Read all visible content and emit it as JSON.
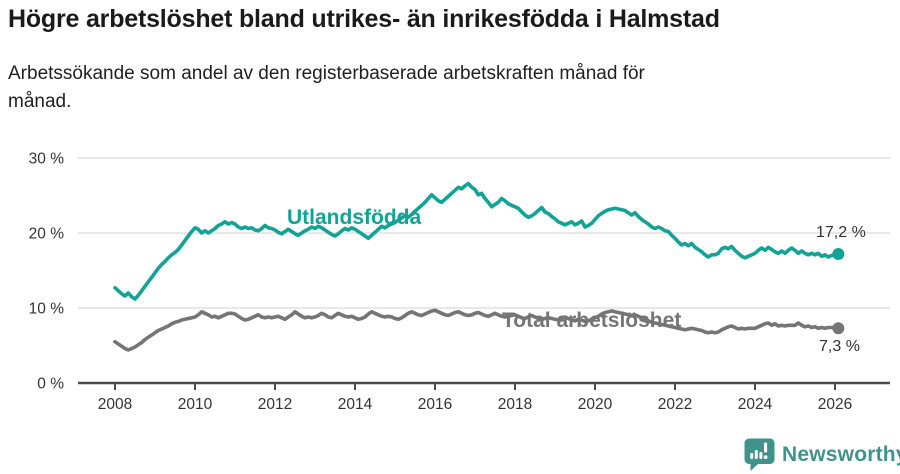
{
  "header": {
    "title": "Högre arbetslöshet bland utrikes- än inrikesfödda i Halmstad",
    "subtitle": "Arbetssökande som andel av den registerbaserade arbetskraften månad för månad."
  },
  "chart_data": {
    "type": "line",
    "title": "Högre arbetslöshet bland utrikes- än inrikesfödda i Halmstad",
    "subtitle": "Arbetssökande som andel av den registerbaserade arbetskraften månad för månad.",
    "x_start_year": 2008,
    "x_unit": "month",
    "x_tick_years": [
      2008,
      2010,
      2012,
      2014,
      2016,
      2018,
      2020,
      2022,
      2024,
      2026
    ],
    "y_ticks": [
      {
        "value": 0,
        "label": "0 %"
      },
      {
        "value": 10,
        "label": "10 %"
      },
      {
        "value": 20,
        "label": "20 %"
      },
      {
        "value": 30,
        "label": "30 %"
      }
    ],
    "ylim": [
      0,
      32
    ],
    "grid": "horizontal",
    "legend_position": "inline-labels",
    "series": [
      {
        "name": "Utlandsfödda",
        "color": "#13a396",
        "end_label": "17,2 %",
        "end_value": 17.2,
        "values": [
          12.7,
          12.3,
          11.9,
          11.6,
          12.0,
          11.5,
          11.2,
          11.7,
          12.3,
          12.9,
          13.5,
          14.1,
          14.7,
          15.3,
          15.8,
          16.2,
          16.7,
          17.1,
          17.4,
          17.8,
          18.4,
          19.0,
          19.6,
          20.2,
          20.7,
          20.5,
          20.0,
          20.3,
          20.0,
          20.3,
          20.6,
          21.0,
          21.2,
          21.5,
          21.2,
          21.4,
          21.2,
          20.8,
          20.6,
          20.8,
          20.6,
          20.7,
          20.4,
          20.3,
          20.6,
          21.0,
          20.7,
          20.6,
          20.4,
          20.1,
          19.9,
          20.2,
          20.5,
          20.2,
          19.9,
          19.7,
          20.0,
          20.3,
          20.5,
          20.8,
          20.6,
          20.9,
          20.7,
          20.4,
          20.1,
          19.8,
          19.6,
          19.9,
          20.3,
          20.6,
          20.4,
          20.7,
          20.5,
          20.2,
          19.9,
          19.6,
          19.3,
          19.7,
          20.1,
          20.5,
          20.9,
          20.7,
          21.0,
          21.2,
          21.4,
          21.7,
          22.0,
          22.3,
          22.1,
          22.5,
          22.9,
          23.3,
          23.7,
          24.1,
          24.6,
          25.1,
          24.7,
          24.3,
          24.1,
          24.5,
          24.9,
          25.3,
          25.7,
          26.1,
          25.9,
          26.3,
          26.6,
          26.1,
          25.8,
          25.1,
          25.3,
          24.6,
          24.1,
          23.5,
          23.8,
          24.1,
          24.6,
          24.3,
          23.9,
          23.7,
          23.5,
          23.3,
          22.8,
          22.4,
          22.1,
          22.3,
          22.6,
          23.0,
          23.4,
          22.8,
          22.6,
          22.2,
          21.9,
          21.5,
          21.3,
          21.1,
          21.3,
          21.5,
          21.1,
          21.3,
          21.6,
          20.8,
          21.0,
          21.3,
          21.8,
          22.3,
          22.6,
          22.9,
          23.1,
          23.2,
          23.3,
          23.2,
          23.1,
          23.0,
          22.7,
          22.4,
          22.7,
          22.2,
          21.8,
          21.5,
          21.2,
          20.8,
          20.6,
          20.8,
          20.6,
          20.3,
          20.2,
          19.7,
          19.3,
          18.8,
          18.4,
          18.6,
          18.3,
          18.6,
          18.1,
          17.8,
          17.5,
          17.1,
          16.8,
          17.1,
          17.1,
          17.3,
          17.9,
          18.1,
          17.9,
          18.2,
          17.7,
          17.3,
          16.9,
          16.7,
          16.9,
          17.1,
          17.3,
          17.7,
          18.0,
          17.7,
          18.1,
          17.8,
          17.5,
          17.3,
          17.6,
          17.3,
          17.7,
          18.0,
          17.7,
          17.3,
          17.6,
          17.3,
          17.1,
          17.3,
          17.1,
          17.3,
          16.9,
          17.1,
          16.8,
          17.0,
          17.1,
          17.2
        ]
      },
      {
        "name": "Total arbetslöshet",
        "color": "#757575",
        "end_label": "7,3 %",
        "end_value": 7.3,
        "values": [
          5.5,
          5.2,
          4.9,
          4.6,
          4.4,
          4.6,
          4.8,
          5.1,
          5.4,
          5.8,
          6.1,
          6.4,
          6.7,
          7.0,
          7.2,
          7.4,
          7.6,
          7.9,
          8.1,
          8.2,
          8.4,
          8.5,
          8.6,
          8.7,
          8.8,
          9.1,
          9.5,
          9.3,
          9.1,
          8.8,
          8.9,
          8.7,
          8.9,
          9.1,
          9.3,
          9.3,
          9.2,
          8.9,
          8.6,
          8.4,
          8.5,
          8.7,
          8.9,
          9.1,
          8.8,
          8.7,
          8.8,
          8.7,
          8.8,
          8.9,
          8.7,
          8.5,
          8.8,
          9.1,
          9.5,
          9.2,
          8.9,
          8.7,
          8.8,
          8.7,
          8.8,
          9.0,
          9.3,
          9.1,
          8.8,
          8.7,
          9.0,
          9.3,
          9.1,
          8.9,
          8.8,
          8.9,
          8.7,
          8.5,
          8.6,
          8.8,
          9.2,
          9.5,
          9.3,
          9.1,
          8.9,
          8.8,
          8.9,
          8.8,
          8.6,
          8.5,
          8.7,
          9.0,
          9.3,
          9.5,
          9.3,
          9.1,
          9.0,
          9.2,
          9.4,
          9.6,
          9.7,
          9.5,
          9.3,
          9.1,
          9.0,
          9.2,
          9.4,
          9.5,
          9.3,
          9.1,
          9.0,
          9.1,
          9.3,
          9.4,
          9.2,
          9.0,
          8.9,
          9.1,
          9.3,
          9.1,
          8.9,
          8.8,
          8.9,
          9.0,
          9.1,
          8.9,
          8.7,
          8.6,
          8.8,
          9.0,
          8.8,
          8.6,
          8.5,
          8.6,
          8.7,
          8.6,
          8.5,
          8.4,
          8.6,
          8.8,
          8.6,
          8.4,
          8.3,
          8.5,
          8.4,
          8.2,
          8.3,
          8.5,
          8.7,
          8.9,
          9.2,
          9.4,
          9.5,
          9.6,
          9.5,
          9.4,
          9.3,
          9.2,
          9.1,
          9.0,
          9.1,
          8.9,
          8.7,
          8.5,
          8.3,
          8.1,
          8.0,
          7.9,
          7.8,
          7.7,
          7.6,
          7.5,
          7.4,
          7.3,
          7.2,
          7.1,
          7.2,
          7.3,
          7.2,
          7.1,
          7.0,
          6.8,
          6.7,
          6.8,
          6.7,
          6.8,
          7.1,
          7.3,
          7.5,
          7.6,
          7.4,
          7.2,
          7.3,
          7.2,
          7.3,
          7.3,
          7.3,
          7.5,
          7.7,
          7.9,
          8.0,
          7.7,
          7.9,
          7.6,
          7.7,
          7.6,
          7.7,
          7.7,
          7.7,
          8.0,
          7.7,
          7.5,
          7.6,
          7.4,
          7.5,
          7.3,
          7.4,
          7.3,
          7.4,
          7.4,
          7.4,
          7.3
        ]
      }
    ]
  },
  "footer": {
    "brand": "Newsworthy",
    "brand_color": "#3f938c",
    "brand_icon": "speech-bubble-bar-chart-icon"
  }
}
